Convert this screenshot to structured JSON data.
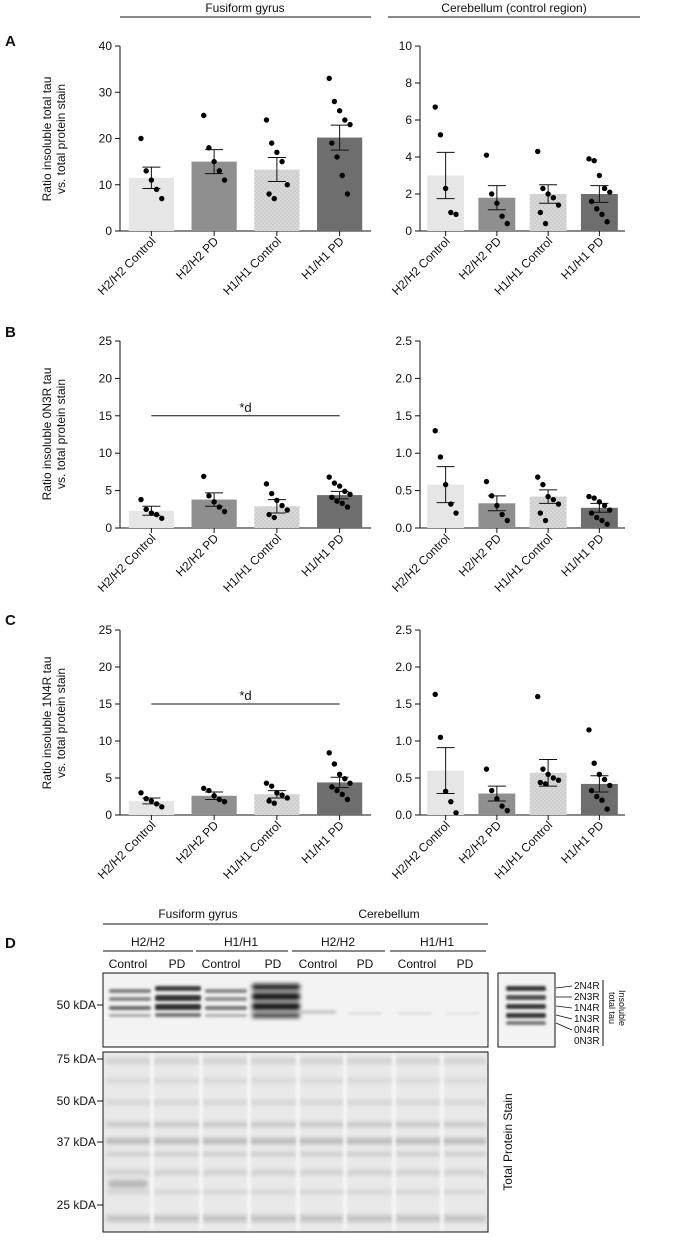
{
  "colors": {
    "axis": "#111111",
    "bar_shades": [
      "#e6e6e6",
      "#8f8f8f",
      "#d2d2d2",
      "#6e6e6e"
    ],
    "dot": "#000000",
    "blot_bg": "#f3f3f3",
    "stain_bg": "#e9e9e9"
  },
  "region_headers": {
    "fusiform": "Fusiform gyrus",
    "cerebellum": "Cerebellum (control region)"
  },
  "panel_labels": {
    "a": "A",
    "b": "B",
    "c": "C",
    "d": "D"
  },
  "y_labels": {
    "a": [
      "Ratio insoluble total tau",
      "vs. total protein stain"
    ],
    "b": [
      "Ratio insoluble 0N3R tau",
      "vs. total protein stain"
    ],
    "c": [
      "Ratio insoluble 1N4R tau",
      "vs. total protein stain"
    ]
  },
  "significance": {
    "b_fusiform": "*d",
    "c_fusiform": "*d"
  },
  "chart_data": [
    {
      "id": "a_fusiform",
      "type": "bar",
      "title": "Fusiform gyrus",
      "categories": [
        "H2/H2 Control",
        "H2/H2 PD",
        "H1/H1 Control",
        "H1/H1 PD"
      ],
      "values": [
        11.5,
        15.0,
        13.3,
        20.2
      ],
      "sem": [
        2.3,
        2.6,
        2.6,
        2.7
      ],
      "points": [
        [
          20,
          13,
          11,
          9,
          7
        ],
        [
          25,
          18,
          15,
          13,
          11
        ],
        [
          24,
          19,
          17,
          15,
          10,
          8,
          7
        ],
        [
          33,
          28,
          26,
          24,
          23,
          19,
          16,
          12,
          8
        ]
      ],
      "ylim": [
        0,
        40
      ],
      "yticks": [
        0,
        10,
        20,
        30,
        40
      ],
      "ytick_labels": [
        "0",
        "10",
        "20",
        "30",
        "40"
      ],
      "ylabel": "Ratio insoluble total tau vs. total protein stain"
    },
    {
      "id": "a_cerebellum",
      "type": "bar",
      "title": "Cerebellum (control region)",
      "categories": [
        "H2/H2 Control",
        "H2/H2 PD",
        "H1/H1 Control",
        "H1/H1 PD"
      ],
      "values": [
        3.0,
        1.8,
        2.0,
        2.0
      ],
      "sem": [
        1.25,
        0.65,
        0.5,
        0.45
      ],
      "points": [
        [
          6.7,
          5.2,
          2.3,
          1.0,
          0.9
        ],
        [
          4.1,
          2.0,
          1.5,
          0.8,
          0.4
        ],
        [
          4.3,
          2.3,
          2.0,
          1.8,
          1.4,
          1.0,
          0.4
        ],
        [
          3.9,
          3.8,
          3.0,
          2.3,
          2.1,
          1.6,
          1.2,
          0.9,
          0.5
        ]
      ],
      "ylim": [
        0,
        10
      ],
      "yticks": [
        0,
        2,
        4,
        6,
        8,
        10
      ],
      "ytick_labels": [
        "0",
        "2",
        "4",
        "6",
        "8",
        "10"
      ]
    },
    {
      "id": "b_fusiform",
      "type": "bar",
      "categories": [
        "H2/H2 Control",
        "H2/H2 PD",
        "H1/H1 Control",
        "H1/H1 PD"
      ],
      "values": [
        2.3,
        3.8,
        2.9,
        4.4
      ],
      "sem": [
        0.6,
        0.9,
        0.9,
        0.5
      ],
      "points": [
        [
          3.8,
          2.5,
          2.0,
          1.8,
          1.3
        ],
        [
          6.9,
          4.3,
          3.5,
          2.8,
          2.2
        ],
        [
          5.9,
          4.6,
          3.7,
          3.0,
          2.4,
          1.8,
          1.4
        ],
        [
          6.8,
          6.0,
          5.6,
          4.9,
          4.5,
          4.1,
          3.6,
          3.3,
          2.8
        ]
      ],
      "ylim": [
        0,
        25
      ],
      "yticks": [
        0,
        5,
        10,
        15,
        20,
        25
      ],
      "ytick_labels": [
        "0",
        "5",
        "10",
        "15",
        "20",
        "25"
      ],
      "ylabel": "Ratio insoluble 0N3R tau vs. total protein stain",
      "significance": {
        "from": 0,
        "to": 3,
        "y": 15,
        "label": "*d"
      }
    },
    {
      "id": "b_cerebellum",
      "type": "bar",
      "categories": [
        "H2/H2 Control",
        "H2/H2 PD",
        "H1/H1 Control",
        "H1/H1 PD"
      ],
      "values": [
        0.58,
        0.33,
        0.42,
        0.27
      ],
      "sem": [
        0.24,
        0.1,
        0.09,
        0.06
      ],
      "points": [
        [
          1.3,
          0.95,
          0.58,
          0.32,
          0.2
        ],
        [
          0.62,
          0.43,
          0.3,
          0.18,
          0.1
        ],
        [
          0.68,
          0.58,
          0.42,
          0.38,
          0.32,
          0.2,
          0.1
        ],
        [
          0.42,
          0.4,
          0.35,
          0.3,
          0.24,
          0.2,
          0.14,
          0.1,
          0.05
        ]
      ],
      "ylim": [
        0,
        2.5
      ],
      "yticks": [
        0,
        0.5,
        1.0,
        1.5,
        2.0,
        2.5
      ],
      "ytick_labels": [
        "0.0",
        "0.5",
        "1.0",
        "1.5",
        "2.0",
        "2.5"
      ]
    },
    {
      "id": "c_fusiform",
      "type": "bar",
      "categories": [
        "H2/H2 Control",
        "H2/H2 PD",
        "H1/H1 Control",
        "H1/H1 PD"
      ],
      "values": [
        1.9,
        2.6,
        2.8,
        4.4
      ],
      "sem": [
        0.4,
        0.5,
        0.5,
        0.7
      ],
      "points": [
        [
          3.0,
          2.2,
          1.9,
          1.5,
          1.1
        ],
        [
          3.6,
          3.3,
          2.6,
          2.1,
          1.8
        ],
        [
          4.3,
          3.9,
          3.0,
          2.7,
          2.3,
          1.9,
          1.6
        ],
        [
          8.4,
          6.9,
          5.5,
          4.9,
          4.3,
          3.8,
          3.3,
          2.8,
          2.1
        ]
      ],
      "ylim": [
        0,
        25
      ],
      "yticks": [
        0,
        5,
        10,
        15,
        20,
        25
      ],
      "ytick_labels": [
        "0",
        "5",
        "10",
        "15",
        "20",
        "25"
      ],
      "ylabel": "Ratio insoluble 1N4R tau vs. total protein stain",
      "significance": {
        "from": 0,
        "to": 3,
        "y": 15,
        "label": "*d"
      }
    },
    {
      "id": "c_cerebellum",
      "type": "bar",
      "categories": [
        "H2/H2 Control",
        "H2/H2 PD",
        "H1/H1 Control",
        "H1/H1 PD"
      ],
      "values": [
        0.6,
        0.29,
        0.57,
        0.42
      ],
      "sem": [
        0.31,
        0.1,
        0.18,
        0.11
      ],
      "points": [
        [
          1.63,
          1.05,
          0.32,
          0.18,
          0.03
        ],
        [
          0.62,
          0.33,
          0.22,
          0.12,
          0.06
        ],
        [
          1.6,
          0.62,
          0.55,
          0.5,
          0.47,
          0.44,
          0.42
        ],
        [
          1.15,
          0.7,
          0.55,
          0.48,
          0.4,
          0.33,
          0.25,
          0.2,
          0.08
        ]
      ],
      "ylim": [
        0,
        2.5
      ],
      "yticks": [
        0,
        0.5,
        1.0,
        1.5,
        2.0,
        2.5
      ],
      "ytick_labels": [
        "0.0",
        "0.5",
        "1.0",
        "1.5",
        "2.0",
        "2.5"
      ]
    }
  ],
  "blot": {
    "regions": [
      "Fusiform gyrus",
      "Cerebellum"
    ],
    "genotypes": [
      "H2/H2",
      "H1/H1",
      "H2/H2",
      "H1/H1"
    ],
    "lane_labels": [
      "Control",
      "PD",
      "Control",
      "PD",
      "Control",
      "PD",
      "Control",
      "PD"
    ],
    "tau_marker": "50 kDA",
    "stain_markers": [
      "75 kDA",
      "50 kDA",
      "37 kDA",
      "25 kDA"
    ],
    "isoforms": [
      "2N4R",
      "2N3R",
      "1N4R",
      "1N3R",
      "0N4R",
      "0N3R"
    ],
    "isoform_caption": [
      "Insoluble",
      "total tau"
    ],
    "stain_caption": "Total Protein Stain"
  }
}
